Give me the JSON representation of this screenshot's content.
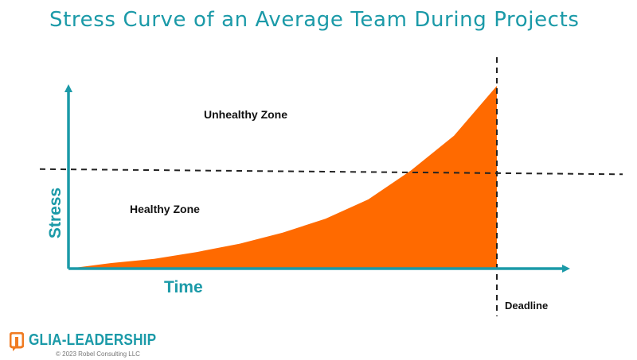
{
  "title": "Stress Curve of an Average Team During Projects",
  "chart_data": {
    "type": "area",
    "title": "Stress Curve of an Average Team During Projects",
    "xlabel": "Time",
    "ylabel": "Stress",
    "x": [
      0,
      0.1,
      0.2,
      0.3,
      0.4,
      0.5,
      0.6,
      0.7,
      0.8,
      0.9,
      1.0
    ],
    "values": [
      0.0,
      0.04,
      0.07,
      0.12,
      0.18,
      0.26,
      0.36,
      0.5,
      0.71,
      0.96,
      1.32
    ],
    "xlim": [
      0,
      1.2
    ],
    "ylim": [
      0,
      1.4
    ],
    "threshold": 0.71,
    "deadline_x": 1.0,
    "annotations": {
      "upper_zone": "Unhealthy Zone",
      "lower_zone": "Healthy Zone",
      "deadline": "Deadline"
    },
    "grid": false,
    "colors": {
      "fill": "#ff6a00",
      "axis": "#1b9aa8",
      "dashed": "#222222"
    }
  },
  "logo": {
    "name": "GLIA-LEADERSHIP",
    "copyright": "© 2023 Robel Consulting LLC",
    "accent": "#f07b22"
  }
}
